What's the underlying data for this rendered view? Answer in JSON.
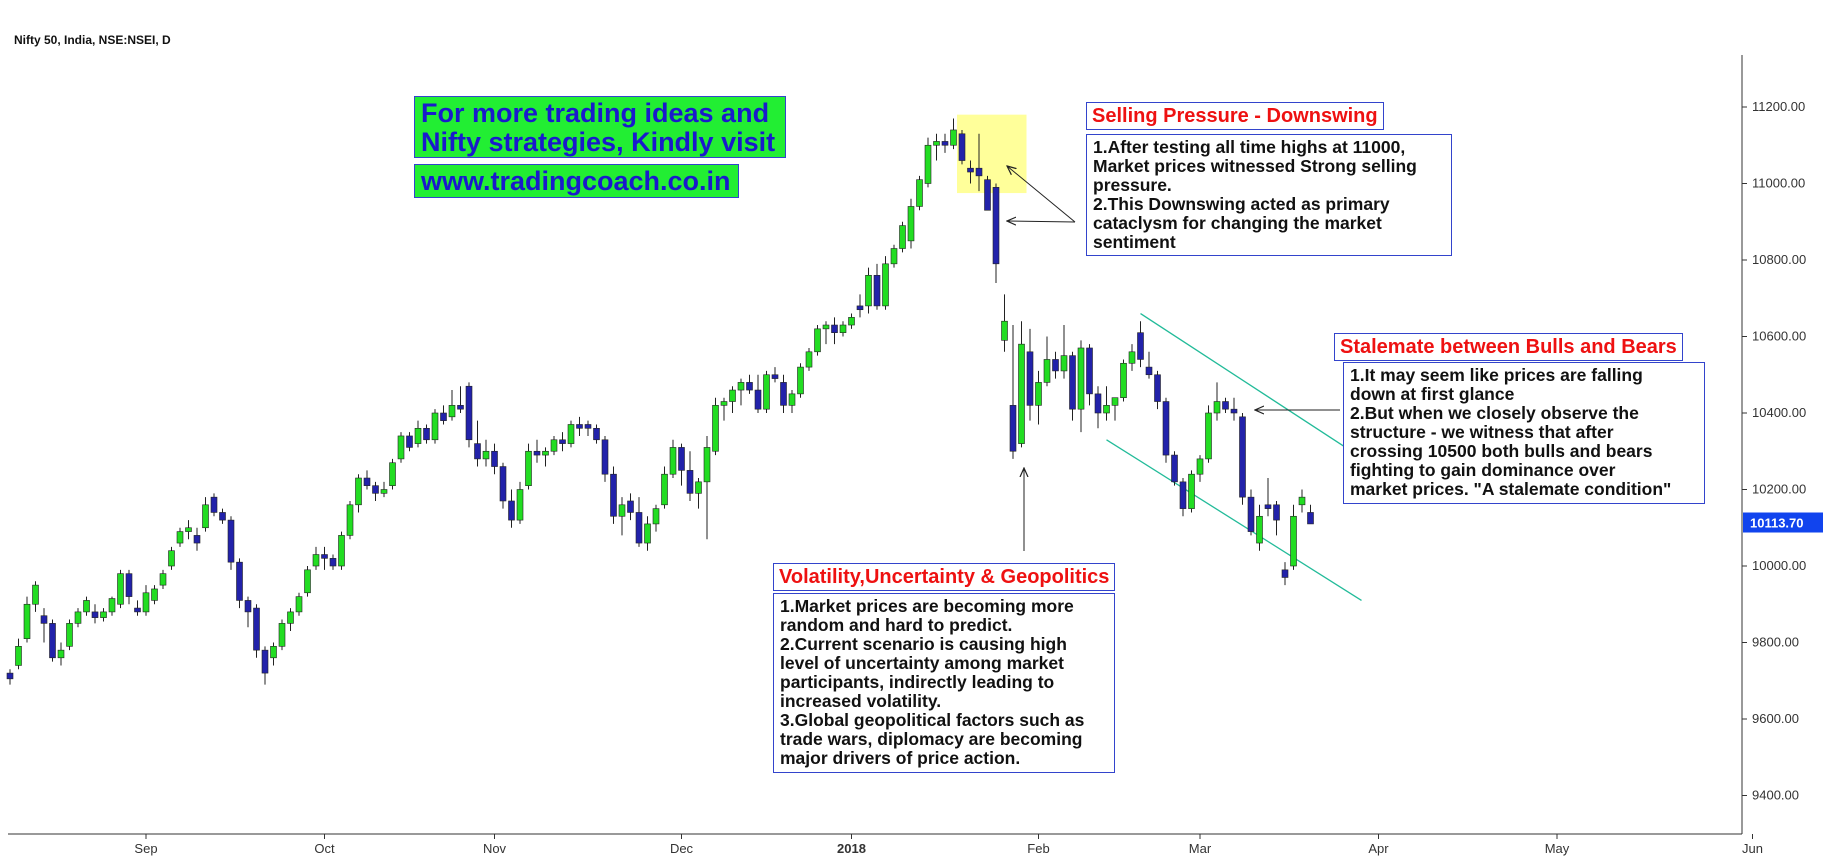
{
  "header": {
    "symbol_title": "Nifty 50, India, NSE:NSEI, D"
  },
  "promo": {
    "line1": "For more trading ideas and",
    "line2": "Nifty strategies, Kindly visit",
    "url": "www.tradingcoach.co.in",
    "bg_color": "#22ee33",
    "text_color": "#1a1acc"
  },
  "annotations": {
    "selling": {
      "title": "Selling Pressure - Downswing",
      "lines": [
        "1.After testing all time highs at 11000,",
        "Market prices witnessed Strong selling",
        "pressure.",
        "2.This Downswing acted as primary",
        "cataclysm for changing the market",
        "sentiment"
      ]
    },
    "stalemate": {
      "title": "Stalemate between Bulls and Bears",
      "lines": [
        "1.It may seem like prices are falling",
        "down at first glance",
        "2.But when we closely observe the",
        "structure - we witness that after",
        "crossing 10500 both bulls and bears",
        "fighting to gain dominance over",
        "market prices. \"A stalemate condition\""
      ]
    },
    "volatility": {
      "title": "Volatility,Uncertainty & Geopolitics",
      "lines": [
        "1.Market prices are becoming more",
        "random and hard to predict.",
        "2.Current scenario is causing high",
        "level of uncertainty among market",
        "participants, indirectly leading to",
        "increased volatility.",
        "3.Global geopolitical factors such as",
        "trade wars, diplomacy are becoming",
        "major drivers of price action."
      ]
    }
  },
  "chart_data": {
    "type": "candlestick",
    "title": "Nifty 50, India, NSE:NSEI, D",
    "ylim": [
      9300,
      11300
    ],
    "y_ticks": [
      "11200.00",
      "11000.00",
      "10800.00",
      "10600.00",
      "10400.00",
      "10200.00",
      "10000.00",
      "9800.00",
      "9600.00",
      "9400.00"
    ],
    "y_tick_values": [
      11200,
      11000,
      10800,
      10600,
      10400,
      10200,
      10000,
      9800,
      9600,
      9400
    ],
    "x_ticks": [
      "Sep",
      "Oct",
      "Nov",
      "Dec",
      "2018",
      "Feb",
      "Mar",
      "Apr",
      "May",
      "Jun"
    ],
    "x_tick_bar_index": [
      16,
      37,
      57,
      79,
      99,
      121,
      140,
      161,
      182,
      205
    ],
    "current_price": {
      "label": "10113.70",
      "value": 10113.7
    },
    "colors": {
      "up": "#22dd22",
      "down": "#2222aa",
      "price_tag": "#1144ee",
      "channel": "#22bb99",
      "highlight": "#ffff88"
    },
    "highlight_zone": {
      "from_bar": 112,
      "to_bar": 119,
      "low": 10975,
      "high": 11180
    },
    "channel": {
      "upper": {
        "from_bar": 133,
        "from_price": 10660,
        "to_bar": 163,
        "to_price": 10225
      },
      "lower": {
        "from_bar": 129,
        "from_price": 10330,
        "to_bar": 159,
        "to_price": 9910
      }
    },
    "candles": [
      [
        9720,
        9730,
        9690,
        9705
      ],
      [
        9740,
        9810,
        9730,
        9790
      ],
      [
        9810,
        9920,
        9800,
        9900
      ],
      [
        9900,
        9960,
        9880,
        9950
      ],
      [
        9870,
        9890,
        9800,
        9850
      ],
      [
        9850,
        9860,
        9750,
        9760
      ],
      [
        9760,
        9800,
        9740,
        9780
      ],
      [
        9790,
        9860,
        9780,
        9850
      ],
      [
        9850,
        9890,
        9840,
        9880
      ],
      [
        9880,
        9920,
        9870,
        9910
      ],
      [
        9880,
        9900,
        9850,
        9865
      ],
      [
        9865,
        9890,
        9855,
        9880
      ],
      [
        9880,
        9920,
        9870,
        9915
      ],
      [
        9900,
        9990,
        9890,
        9980
      ],
      [
        9980,
        9990,
        9900,
        9920
      ],
      [
        9890,
        9910,
        9870,
        9880
      ],
      [
        9880,
        9950,
        9870,
        9930
      ],
      [
        9910,
        9950,
        9900,
        9940
      ],
      [
        9950,
        9990,
        9940,
        9980
      ],
      [
        10000,
        10050,
        9990,
        10040
      ],
      [
        10060,
        10100,
        10050,
        10090
      ],
      [
        10090,
        10120,
        10070,
        10100
      ],
      [
        10080,
        10100,
        10040,
        10060
      ],
      [
        10100,
        10180,
        10090,
        10160
      ],
      [
        10180,
        10190,
        10130,
        10140
      ],
      [
        10140,
        10150,
        10110,
        10120
      ],
      [
        10120,
        10130,
        9990,
        10010
      ],
      [
        10010,
        10020,
        9890,
        9910
      ],
      [
        9910,
        9920,
        9840,
        9880
      ],
      [
        9890,
        9900,
        9760,
        9780
      ],
      [
        9780,
        9790,
        9690,
        9720
      ],
      [
        9760,
        9800,
        9740,
        9790
      ],
      [
        9790,
        9860,
        9780,
        9850
      ],
      [
        9850,
        9890,
        9830,
        9880
      ],
      [
        9880,
        9930,
        9870,
        9920
      ],
      [
        9930,
        10000,
        9920,
        9990
      ],
      [
        10000,
        10050,
        9990,
        10030
      ],
      [
        10030,
        10050,
        9990,
        10020
      ],
      [
        10020,
        10030,
        9990,
        10000
      ],
      [
        10000,
        10090,
        9990,
        10080
      ],
      [
        10080,
        10170,
        10070,
        10160
      ],
      [
        10160,
        10240,
        10140,
        10230
      ],
      [
        10230,
        10250,
        10200,
        10210
      ],
      [
        10210,
        10220,
        10170,
        10190
      ],
      [
        10190,
        10220,
        10180,
        10200
      ],
      [
        10210,
        10280,
        10200,
        10270
      ],
      [
        10280,
        10350,
        10270,
        10340
      ],
      [
        10340,
        10350,
        10300,
        10310
      ],
      [
        10320,
        10380,
        10310,
        10360
      ],
      [
        10360,
        10370,
        10320,
        10330
      ],
      [
        10330,
        10410,
        10320,
        10400
      ],
      [
        10400,
        10420,
        10370,
        10380
      ],
      [
        10390,
        10460,
        10380,
        10420
      ],
      [
        10420,
        10470,
        10400,
        10410
      ],
      [
        10470,
        10480,
        10310,
        10330
      ],
      [
        10320,
        10380,
        10260,
        10280
      ],
      [
        10280,
        10330,
        10260,
        10300
      ],
      [
        10300,
        10320,
        10240,
        10260
      ],
      [
        10260,
        10270,
        10150,
        10170
      ],
      [
        10170,
        10200,
        10100,
        10120
      ],
      [
        10120,
        10220,
        10110,
        10200
      ],
      [
        10210,
        10320,
        10200,
        10300
      ],
      [
        10300,
        10330,
        10270,
        10290
      ],
      [
        10290,
        10310,
        10260,
        10300
      ],
      [
        10300,
        10340,
        10290,
        10330
      ],
      [
        10330,
        10350,
        10300,
        10320
      ],
      [
        10320,
        10380,
        10310,
        10370
      ],
      [
        10370,
        10390,
        10340,
        10360
      ],
      [
        10370,
        10380,
        10340,
        10360
      ],
      [
        10360,
        10370,
        10320,
        10330
      ],
      [
        10330,
        10340,
        10220,
        10240
      ],
      [
        10240,
        10260,
        10110,
        10130
      ],
      [
        10130,
        10180,
        10080,
        10160
      ],
      [
        10170,
        10190,
        10120,
        10140
      ],
      [
        10140,
        10180,
        10050,
        10060
      ],
      [
        10060,
        10130,
        10040,
        10110
      ],
      [
        10110,
        10160,
        10090,
        10150
      ],
      [
        10160,
        10260,
        10150,
        10240
      ],
      [
        10240,
        10330,
        10230,
        10310
      ],
      [
        10310,
        10320,
        10210,
        10250
      ],
      [
        10250,
        10300,
        10170,
        10190
      ],
      [
        10190,
        10230,
        10150,
        10220
      ],
      [
        10220,
        10340,
        10070,
        10310
      ],
      [
        10300,
        10440,
        10290,
        10420
      ],
      [
        10420,
        10440,
        10380,
        10430
      ],
      [
        10430,
        10470,
        10400,
        10460
      ],
      [
        10460,
        10490,
        10420,
        10480
      ],
      [
        10480,
        10500,
        10450,
        10460
      ],
      [
        10460,
        10500,
        10400,
        10410
      ],
      [
        10410,
        10510,
        10400,
        10500
      ],
      [
        10500,
        10520,
        10480,
        10490
      ],
      [
        10480,
        10500,
        10400,
        10420
      ],
      [
        10420,
        10460,
        10400,
        10450
      ],
      [
        10450,
        10530,
        10440,
        10520
      ],
      [
        10520,
        10570,
        10510,
        10560
      ],
      [
        10560,
        10630,
        10550,
        10620
      ],
      [
        10620,
        10640,
        10580,
        10630
      ],
      [
        10630,
        10650,
        10580,
        10610
      ],
      [
        10610,
        10640,
        10600,
        10630
      ],
      [
        10630,
        10660,
        10620,
        10650
      ],
      [
        10680,
        10710,
        10650,
        10670
      ],
      [
        10680,
        10780,
        10660,
        10760
      ],
      [
        10760,
        10790,
        10670,
        10680
      ],
      [
        10680,
        10810,
        10670,
        10790
      ],
      [
        10790,
        10840,
        10780,
        10830
      ],
      [
        10830,
        10900,
        10820,
        10890
      ],
      [
        10850,
        10960,
        10830,
        10940
      ],
      [
        10940,
        11020,
        10930,
        11010
      ],
      [
        11000,
        11120,
        10990,
        11100
      ],
      [
        11100,
        11130,
        11060,
        11110
      ],
      [
        11110,
        11130,
        11080,
        11100
      ],
      [
        11100,
        11170,
        11090,
        11140
      ],
      [
        11130,
        11140,
        11050,
        11060
      ],
      [
        11040,
        11060,
        11000,
        11030
      ],
      [
        11040,
        11130,
        10980,
        11020
      ],
      [
        11010,
        11020,
        10930,
        10930
      ],
      [
        10990,
        11000,
        10740,
        10790
      ],
      [
        10590,
        10710,
        10560,
        10640
      ],
      [
        10420,
        10630,
        10280,
        10300
      ],
      [
        10320,
        10640,
        10310,
        10580
      ],
      [
        10560,
        10620,
        10380,
        10420
      ],
      [
        10420,
        10510,
        10370,
        10480
      ],
      [
        10480,
        10600,
        10470,
        10540
      ],
      [
        10540,
        10560,
        10490,
        10510
      ],
      [
        10510,
        10630,
        10490,
        10550
      ],
      [
        10550,
        10560,
        10380,
        10410
      ],
      [
        10410,
        10590,
        10350,
        10570
      ],
      [
        10570,
        10580,
        10420,
        10450
      ],
      [
        10450,
        10470,
        10360,
        10400
      ],
      [
        10400,
        10470,
        10380,
        10420
      ],
      [
        10420,
        10430,
        10380,
        10440
      ],
      [
        10440,
        10540,
        10430,
        10530
      ],
      [
        10530,
        10580,
        10510,
        10560
      ],
      [
        10610,
        10640,
        10520,
        10540
      ],
      [
        10520,
        10560,
        10490,
        10500
      ],
      [
        10500,
        10510,
        10410,
        10430
      ],
      [
        10430,
        10440,
        10270,
        10290
      ],
      [
        10290,
        10300,
        10210,
        10220
      ],
      [
        10220,
        10230,
        10130,
        10150
      ],
      [
        10150,
        10250,
        10140,
        10240
      ],
      [
        10240,
        10290,
        10220,
        10280
      ],
      [
        10280,
        10420,
        10270,
        10400
      ],
      [
        10400,
        10480,
        10380,
        10430
      ],
      [
        10430,
        10440,
        10400,
        10410
      ],
      [
        10410,
        10440,
        10380,
        10400
      ],
      [
        10390,
        10400,
        10160,
        10180
      ],
      [
        10180,
        10200,
        10080,
        10090
      ],
      [
        10060,
        10160,
        10040,
        10130
      ],
      [
        10160,
        10230,
        10130,
        10150
      ],
      [
        10160,
        10170,
        10080,
        10120
      ],
      [
        9990,
        10010,
        9950,
        9970
      ],
      [
        10000,
        10160,
        9990,
        10130
      ],
      [
        10160,
        10200,
        10140,
        10180
      ],
      [
        10140,
        10160,
        10110,
        10110
      ]
    ]
  }
}
